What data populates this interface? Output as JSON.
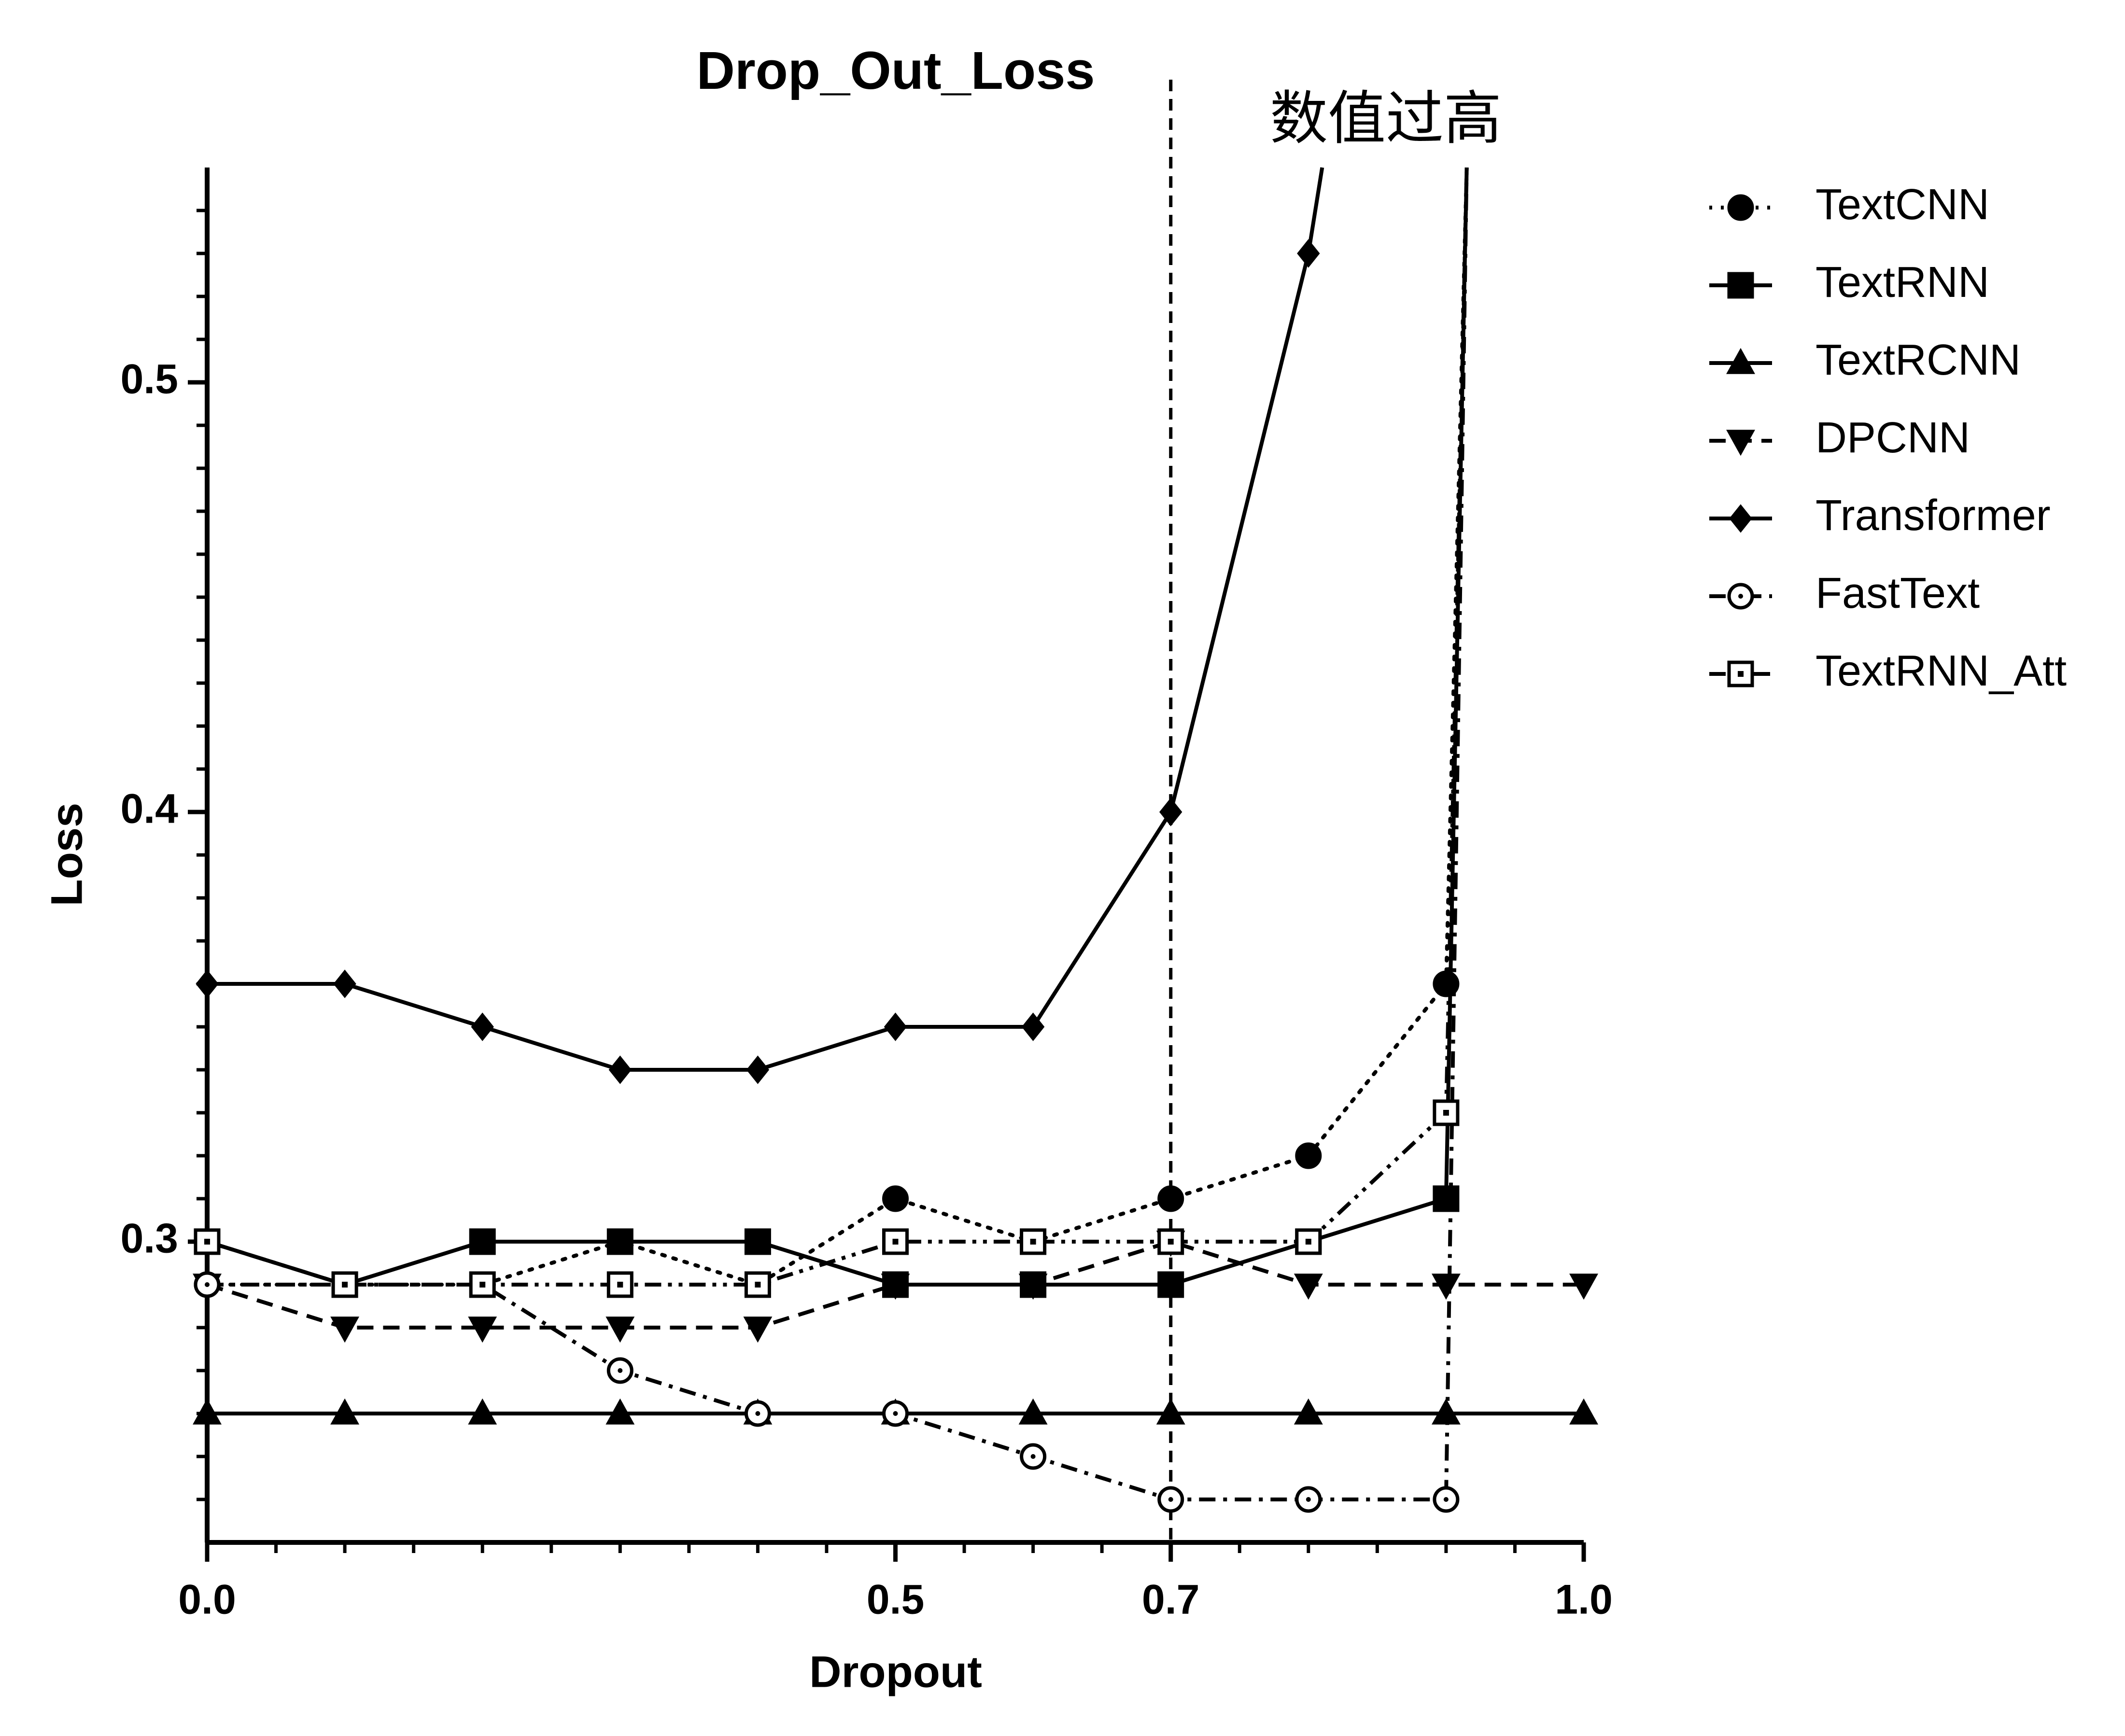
{
  "chart_data": {
    "type": "line",
    "title": "Drop_Out_Loss",
    "x_label": "Dropout",
    "y_label": "Loss",
    "annotation": "数值过高",
    "xlim": [
      0,
      1.0
    ],
    "ylim": [
      0.23,
      0.55
    ],
    "xticks": [
      {
        "value": 0,
        "label": "0.0"
      },
      0.5,
      0.7,
      {
        "value": 1.0,
        "label": "1.0"
      }
    ],
    "yticks": [
      0.3,
      0.4,
      0.5
    ],
    "vlines": [
      0.7
    ],
    "series": [
      {
        "name": "TextCNN",
        "color": "#000000",
        "line_style": "dotted",
        "marker": "circle",
        "fill": true,
        "x": [
          0,
          0.1,
          0.2,
          0.3,
          0.4,
          0.5,
          0.6,
          0.7,
          0.8,
          0.9,
          0.915
        ],
        "values": [
          0.29,
          0.29,
          0.29,
          0.3,
          0.29,
          0.31,
          0.3,
          0.31,
          0.32,
          0.36,
          0.55
        ]
      },
      {
        "name": "TextRNN",
        "color": "#000000",
        "line_style": "solid",
        "marker": "square",
        "fill": true,
        "x": [
          0,
          0.1,
          0.2,
          0.3,
          0.4,
          0.5,
          0.6,
          0.7,
          0.8,
          0.9,
          0.915
        ],
        "values": [
          0.3,
          0.29,
          0.3,
          0.3,
          0.3,
          0.29,
          0.29,
          0.29,
          0.3,
          0.31,
          0.55
        ]
      },
      {
        "name": "TextRCNN",
        "color": "#000000",
        "line_style": "solid",
        "marker": "triangle",
        "fill": true,
        "x": [
          0,
          0.1,
          0.2,
          0.3,
          0.4,
          0.5,
          0.6,
          0.7,
          0.8,
          0.9,
          1.0
        ],
        "values": [
          0.26,
          0.26,
          0.26,
          0.26,
          0.26,
          0.26,
          0.26,
          0.26,
          0.26,
          0.26,
          0.26
        ]
      },
      {
        "name": "DPCNN",
        "color": "#000000",
        "line_style": "dashed",
        "marker": "triangle-down",
        "fill": true,
        "x": [
          0,
          0.1,
          0.2,
          0.3,
          0.4,
          0.5,
          0.6,
          0.7,
          0.8,
          0.9,
          1.0
        ],
        "values": [
          0.29,
          0.28,
          0.28,
          0.28,
          0.28,
          0.29,
          0.29,
          0.3,
          0.29,
          0.29,
          0.29
        ]
      },
      {
        "name": "Transformer",
        "color": "#000000",
        "line_style": "solid",
        "marker": "diamond",
        "fill": true,
        "x": [
          0,
          0.1,
          0.2,
          0.3,
          0.4,
          0.5,
          0.6,
          0.7,
          0.8,
          0.81
        ],
        "values": [
          0.36,
          0.36,
          0.35,
          0.34,
          0.34,
          0.35,
          0.35,
          0.4,
          0.53,
          0.55
        ]
      },
      {
        "name": "FastText",
        "color": "#000000",
        "line_style": "dashdot",
        "marker": "circle",
        "fill": false,
        "x": [
          0,
          0.1,
          0.2,
          0.3,
          0.4,
          0.5,
          0.6,
          0.7,
          0.8,
          0.9,
          0.915
        ],
        "values": [
          0.29,
          0.29,
          0.29,
          0.27,
          0.26,
          0.26,
          0.25,
          0.24,
          0.24,
          0.24,
          0.55
        ]
      },
      {
        "name": "TextRNN_Att",
        "color": "#000000",
        "line_style": "dashdotdot",
        "marker": "square",
        "fill": false,
        "x": [
          0,
          0.1,
          0.2,
          0.3,
          0.4,
          0.5,
          0.6,
          0.7,
          0.8,
          0.9,
          0.915
        ],
        "values": [
          0.3,
          0.29,
          0.29,
          0.29,
          0.29,
          0.3,
          0.3,
          0.3,
          0.3,
          0.33,
          0.55
        ]
      }
    ]
  }
}
